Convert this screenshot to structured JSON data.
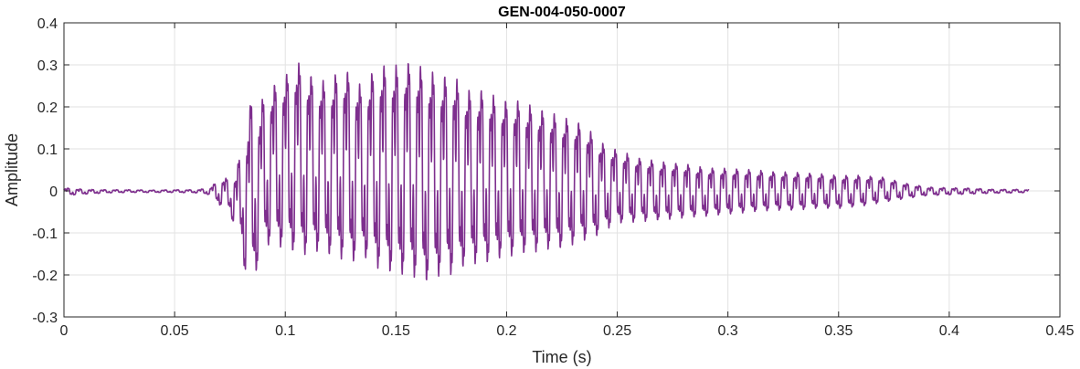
{
  "chart_data": {
    "type": "line",
    "title": "GEN-004-050-0007",
    "xlabel": "Time (s)",
    "ylabel": "Amplitude",
    "xlim": [
      0,
      0.45
    ],
    "ylim": [
      -0.3,
      0.4
    ],
    "xticks": [
      0,
      0.05,
      0.1,
      0.15,
      0.2,
      0.25,
      0.3,
      0.35,
      0.4,
      0.45
    ],
    "xtick_labels": [
      "0",
      "0.05",
      "0.1",
      "0.15",
      "0.2",
      "0.25",
      "0.3",
      "0.35",
      "0.4",
      "0.45"
    ],
    "yticks": [
      -0.3,
      -0.2,
      -0.1,
      0,
      0.1,
      0.2,
      0.3,
      0.4
    ],
    "ytick_labels": [
      "-0.3",
      "-0.2",
      "-0.1",
      "0",
      "0.1",
      "0.2",
      "0.3",
      "0.4"
    ],
    "grid": true,
    "line_color": "#7E2F8E",
    "series": [
      {
        "x": [
          0,
          0.01,
          0.02,
          0.03,
          0.04,
          0.05,
          0.06,
          0.066,
          0.07,
          0.075,
          0.078,
          0.08,
          0.082,
          0.085,
          0.088,
          0.09,
          0.095,
          0.1,
          0.105,
          0.11,
          0.115,
          0.12,
          0.125,
          0.13,
          0.135,
          0.14,
          0.145,
          0.15,
          0.155,
          0.16,
          0.165,
          0.17,
          0.175,
          0.18,
          0.185,
          0.19,
          0.195,
          0.2,
          0.205,
          0.21,
          0.215,
          0.22,
          0.225,
          0.23,
          0.235,
          0.24,
          0.245,
          0.25,
          0.26,
          0.27,
          0.28,
          0.29,
          0.3,
          0.31,
          0.32,
          0.33,
          0.34,
          0.35,
          0.36,
          0.37,
          0.38,
          0.39,
          0.4,
          0.41,
          0.42,
          0.43,
          0.436
        ],
        "upper": [
          0.008,
          0.004,
          0.003,
          0.003,
          0.002,
          0.003,
          0.003,
          0.008,
          0.03,
          0.035,
          0.05,
          0.12,
          0.12,
          0.26,
          0.2,
          0.24,
          0.27,
          0.29,
          0.33,
          0.3,
          0.28,
          0.28,
          0.31,
          0.3,
          0.26,
          0.31,
          0.32,
          0.32,
          0.33,
          0.32,
          0.31,
          0.29,
          0.3,
          0.27,
          0.25,
          0.26,
          0.24,
          0.23,
          0.23,
          0.22,
          0.21,
          0.2,
          0.19,
          0.18,
          0.17,
          0.14,
          0.115,
          0.105,
          0.085,
          0.075,
          0.07,
          0.06,
          0.058,
          0.055,
          0.05,
          0.048,
          0.045,
          0.04,
          0.04,
          0.035,
          0.02,
          0.01,
          0.008,
          0.007,
          0.004,
          0.004,
          0.003
        ],
        "lower": [
          -0.012,
          -0.008,
          -0.005,
          -0.004,
          -0.004,
          -0.004,
          -0.005,
          -0.01,
          -0.035,
          -0.05,
          -0.12,
          -0.12,
          -0.22,
          -0.22,
          -0.2,
          -0.14,
          -0.15,
          -0.15,
          -0.17,
          -0.17,
          -0.16,
          -0.17,
          -0.18,
          -0.19,
          -0.17,
          -0.2,
          -0.21,
          -0.22,
          -0.22,
          -0.23,
          -0.24,
          -0.22,
          -0.22,
          -0.2,
          -0.19,
          -0.19,
          -0.18,
          -0.17,
          -0.17,
          -0.16,
          -0.16,
          -0.15,
          -0.15,
          -0.14,
          -0.13,
          -0.12,
          -0.1,
          -0.085,
          -0.08,
          -0.075,
          -0.07,
          -0.065,
          -0.06,
          -0.055,
          -0.05,
          -0.05,
          -0.045,
          -0.045,
          -0.04,
          -0.03,
          -0.02,
          -0.012,
          -0.01,
          -0.008,
          -0.006,
          -0.005,
          -0.004
        ]
      }
    ]
  }
}
